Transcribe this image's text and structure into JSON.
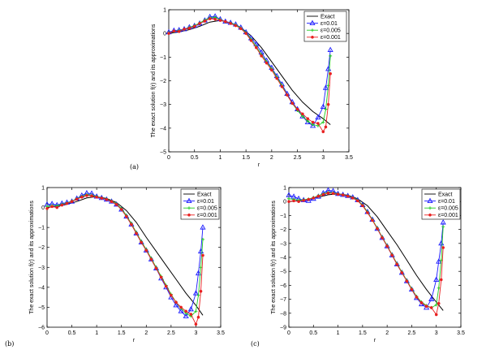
{
  "chart_data": [
    {
      "panel_label": "(a)",
      "type": "line",
      "xlabel": "r",
      "ylabel": "The exact solution f(r) and its approximations",
      "xlim": [
        0,
        3.5
      ],
      "ylim": [
        -5,
        1
      ],
      "xticks": [
        "0",
        "0.5",
        "1",
        "1.5",
        "2",
        "2.5",
        "3",
        "3.5"
      ],
      "yticks": [
        "1",
        "0",
        "−1",
        "−2",
        "−3",
        "−4",
        "−5"
      ],
      "legend": {
        "placement": "top-right",
        "entries": [
          "Exact",
          "ε=0.01",
          "ε=0.005",
          "ε=0.001"
        ]
      },
      "series": [
        {
          "name": "Exact",
          "color": "#000000",
          "marker": "none",
          "x": [
            0,
            0.2,
            0.4,
            0.6,
            0.8,
            1.0,
            1.2,
            1.4,
            1.6,
            1.8,
            2.0,
            2.2,
            2.4,
            2.6,
            2.8,
            3.0,
            3.14
          ],
          "y": [
            0.0,
            0.06,
            0.16,
            0.3,
            0.48,
            0.55,
            0.45,
            0.25,
            -0.1,
            -0.6,
            -1.2,
            -1.8,
            -2.4,
            -2.9,
            -3.3,
            -3.6,
            -3.85
          ]
        },
        {
          "name": "ε=0.01",
          "color": "#1a1aff",
          "marker": "triangle",
          "x": [
            0,
            0.1,
            0.2,
            0.3,
            0.4,
            0.5,
            0.6,
            0.7,
            0.8,
            0.9,
            1.0,
            1.1,
            1.2,
            1.3,
            1.4,
            1.5,
            1.6,
            1.7,
            1.8,
            1.9,
            2.0,
            2.1,
            2.2,
            2.3,
            2.4,
            2.5,
            2.6,
            2.7,
            2.8,
            2.9,
            3.0,
            3.05,
            3.1,
            3.14
          ],
          "y": [
            0.05,
            0.12,
            0.14,
            0.18,
            0.26,
            0.32,
            0.42,
            0.55,
            0.7,
            0.72,
            0.6,
            0.5,
            0.45,
            0.38,
            0.25,
            0.05,
            -0.2,
            -0.45,
            -0.8,
            -1.15,
            -1.45,
            -1.8,
            -2.15,
            -2.55,
            -2.9,
            -3.2,
            -3.5,
            -3.75,
            -3.9,
            -3.55,
            -3.1,
            -2.3,
            -1.5,
            -0.7
          ]
        },
        {
          "name": "ε=0.005",
          "color": "#22cc22",
          "marker": "plus",
          "x": [
            0,
            0.1,
            0.2,
            0.3,
            0.4,
            0.5,
            0.6,
            0.7,
            0.8,
            0.9,
            1.0,
            1.1,
            1.2,
            1.3,
            1.4,
            1.5,
            1.6,
            1.7,
            1.8,
            1.9,
            2.0,
            2.1,
            2.2,
            2.3,
            2.4,
            2.5,
            2.6,
            2.7,
            2.8,
            2.9,
            3.0,
            3.05,
            3.1,
            3.14
          ],
          "y": [
            0.02,
            0.08,
            0.12,
            0.17,
            0.25,
            0.33,
            0.44,
            0.56,
            0.66,
            0.68,
            0.58,
            0.49,
            0.44,
            0.36,
            0.23,
            0.03,
            -0.25,
            -0.55,
            -0.9,
            -1.2,
            -1.5,
            -1.85,
            -2.2,
            -2.6,
            -2.95,
            -3.25,
            -3.5,
            -3.7,
            -3.85,
            -3.9,
            -3.75,
            -3.2,
            -2.2,
            -0.95
          ]
        },
        {
          "name": "ε=0.001",
          "color": "#e82020",
          "marker": "dot",
          "x": [
            0,
            0.1,
            0.2,
            0.3,
            0.4,
            0.5,
            0.6,
            0.7,
            0.8,
            0.9,
            1.0,
            1.1,
            1.2,
            1.3,
            1.4,
            1.5,
            1.6,
            1.7,
            1.8,
            1.9,
            2.0,
            2.1,
            2.2,
            2.3,
            2.4,
            2.5,
            2.6,
            2.7,
            2.8,
            2.9,
            3.0,
            3.05,
            3.1,
            3.14
          ],
          "y": [
            0.0,
            0.1,
            0.08,
            0.18,
            0.22,
            0.3,
            0.42,
            0.52,
            0.62,
            0.6,
            0.55,
            0.5,
            0.42,
            0.33,
            0.2,
            0.0,
            -0.3,
            -0.6,
            -0.95,
            -1.25,
            -1.55,
            -1.9,
            -2.25,
            -2.6,
            -2.95,
            -3.2,
            -3.4,
            -3.6,
            -3.75,
            -3.8,
            -4.15,
            -3.95,
            -3.0,
            -1.7
          ]
        }
      ]
    },
    {
      "panel_label": "(b)",
      "type": "line",
      "xlabel": "r",
      "ylabel": "The exact solution f(r) and its approximations",
      "xlim": [
        0,
        3.5
      ],
      "ylim": [
        -6,
        1
      ],
      "xticks": [
        "0",
        "0.5",
        "1",
        "1.5",
        "2",
        "2.5",
        "3",
        "3.5"
      ],
      "yticks": [
        "1",
        "0",
        "−1",
        "−2",
        "−3",
        "−4",
        "−5",
        "−6"
      ],
      "legend": {
        "placement": "top-right",
        "entries": [
          "Exact",
          "ε=0.01",
          "ε=0.005",
          "ε=0.001"
        ]
      },
      "series": [
        {
          "name": "Exact",
          "color": "#000000",
          "marker": "none",
          "x": [
            0,
            0.2,
            0.4,
            0.6,
            0.8,
            1.0,
            1.2,
            1.4,
            1.6,
            1.8,
            2.0,
            2.2,
            2.4,
            2.6,
            2.8,
            3.0,
            3.14
          ],
          "y": [
            0.0,
            0.06,
            0.16,
            0.3,
            0.48,
            0.55,
            0.45,
            0.25,
            -0.15,
            -0.75,
            -1.5,
            -2.2,
            -2.9,
            -3.6,
            -4.3,
            -4.9,
            -5.4
          ]
        },
        {
          "name": "ε=0.01",
          "color": "#1a1aff",
          "marker": "triangle",
          "x": [
            0,
            0.1,
            0.2,
            0.3,
            0.4,
            0.5,
            0.6,
            0.7,
            0.8,
            0.9,
            1.0,
            1.1,
            1.2,
            1.3,
            1.4,
            1.5,
            1.6,
            1.7,
            1.8,
            1.9,
            2.0,
            2.1,
            2.2,
            2.3,
            2.4,
            2.5,
            2.6,
            2.7,
            2.8,
            2.9,
            3.0,
            3.05,
            3.1,
            3.14
          ],
          "y": [
            0.15,
            0.18,
            0.12,
            0.2,
            0.25,
            0.3,
            0.45,
            0.6,
            0.72,
            0.7,
            0.55,
            0.48,
            0.4,
            0.3,
            0.15,
            -0.1,
            -0.45,
            -0.85,
            -1.3,
            -1.75,
            -2.15,
            -2.6,
            -3.05,
            -3.55,
            -4.0,
            -4.5,
            -4.9,
            -5.2,
            -5.45,
            -5.1,
            -4.3,
            -3.3,
            -2.2,
            -1.0
          ]
        },
        {
          "name": "ε=0.005",
          "color": "#22cc22",
          "marker": "plus",
          "x": [
            0,
            0.1,
            0.2,
            0.3,
            0.4,
            0.5,
            0.6,
            0.7,
            0.8,
            0.9,
            1.0,
            1.1,
            1.2,
            1.3,
            1.4,
            1.5,
            1.6,
            1.7,
            1.8,
            1.9,
            2.0,
            2.1,
            2.2,
            2.3,
            2.4,
            2.5,
            2.6,
            2.7,
            2.8,
            2.9,
            3.0,
            3.05,
            3.1,
            3.14
          ],
          "y": [
            0.05,
            0.1,
            0.08,
            0.16,
            0.22,
            0.32,
            0.44,
            0.55,
            0.65,
            0.62,
            0.55,
            0.48,
            0.42,
            0.32,
            0.18,
            -0.05,
            -0.4,
            -0.8,
            -1.25,
            -1.7,
            -2.1,
            -2.55,
            -3.0,
            -3.45,
            -3.9,
            -4.35,
            -4.75,
            -5.05,
            -5.3,
            -5.45,
            -5.2,
            -4.4,
            -3.0,
            -1.6
          ]
        },
        {
          "name": "ε=0.001",
          "color": "#e82020",
          "marker": "dot",
          "x": [
            0,
            0.1,
            0.2,
            0.3,
            0.4,
            0.5,
            0.6,
            0.7,
            0.8,
            0.9,
            1.0,
            1.1,
            1.2,
            1.3,
            1.4,
            1.5,
            1.6,
            1.7,
            1.8,
            1.9,
            2.0,
            2.1,
            2.2,
            2.3,
            2.4,
            2.5,
            2.6,
            2.7,
            2.8,
            2.9,
            3.0,
            3.05,
            3.1,
            3.14
          ],
          "y": [
            -0.05,
            0.05,
            0.0,
            0.12,
            0.2,
            0.3,
            0.42,
            0.52,
            0.6,
            0.58,
            0.52,
            0.47,
            0.4,
            0.3,
            0.15,
            -0.1,
            -0.45,
            -0.85,
            -1.3,
            -1.75,
            -2.15,
            -2.6,
            -3.05,
            -3.5,
            -3.95,
            -4.4,
            -4.75,
            -5.0,
            -5.2,
            -5.35,
            -5.85,
            -5.5,
            -4.2,
            -2.4
          ]
        }
      ]
    },
    {
      "panel_label": "(c)",
      "type": "line",
      "xlabel": "r",
      "ylabel": "The exact solution f(r) and its approximations",
      "xlim": [
        0,
        3.5
      ],
      "ylim": [
        -9,
        1
      ],
      "xticks": [
        "0",
        "0.5",
        "1",
        "1.5",
        "2",
        "2.5",
        "3",
        "3.5"
      ],
      "yticks": [
        "1",
        "0",
        "−1",
        "−2",
        "−3",
        "−4",
        "−5",
        "−6",
        "−7",
        "−8",
        "−9"
      ],
      "legend": {
        "placement": "top-right",
        "entries": [
          "Exact",
          "ε=0.01",
          "ε=0.005",
          "ε=0.001"
        ]
      },
      "series": [
        {
          "name": "Exact",
          "color": "#000000",
          "marker": "none",
          "x": [
            0,
            0.2,
            0.4,
            0.6,
            0.8,
            1.0,
            1.2,
            1.4,
            1.6,
            1.8,
            2.0,
            2.2,
            2.4,
            2.6,
            2.8,
            3.0,
            3.14
          ],
          "y": [
            0.0,
            0.06,
            0.16,
            0.3,
            0.48,
            0.55,
            0.45,
            0.2,
            -0.3,
            -1.1,
            -2.1,
            -3.1,
            -4.2,
            -5.3,
            -6.3,
            -7.2,
            -7.8
          ]
        },
        {
          "name": "ε=0.01",
          "color": "#1a1aff",
          "marker": "triangle",
          "x": [
            0,
            0.1,
            0.2,
            0.3,
            0.4,
            0.5,
            0.6,
            0.7,
            0.8,
            0.9,
            1.0,
            1.1,
            1.2,
            1.3,
            1.4,
            1.5,
            1.6,
            1.7,
            1.8,
            1.9,
            2.0,
            2.1,
            2.2,
            2.3,
            2.4,
            2.5,
            2.6,
            2.7,
            2.8,
            2.9,
            3.0,
            3.05,
            3.1,
            3.14
          ],
          "y": [
            0.45,
            0.35,
            0.2,
            0.1,
            0.05,
            0.2,
            0.35,
            0.6,
            0.8,
            0.75,
            0.55,
            0.48,
            0.4,
            0.3,
            0.1,
            -0.25,
            -0.75,
            -1.3,
            -1.95,
            -2.6,
            -3.2,
            -3.85,
            -4.5,
            -5.1,
            -5.7,
            -6.3,
            -6.9,
            -7.35,
            -7.6,
            -7.0,
            -5.6,
            -4.3,
            -3.0,
            -1.5
          ]
        },
        {
          "name": "ε=0.005",
          "color": "#22cc22",
          "marker": "plus",
          "x": [
            0,
            0.1,
            0.2,
            0.3,
            0.4,
            0.5,
            0.6,
            0.7,
            0.8,
            0.9,
            1.0,
            1.1,
            1.2,
            1.3,
            1.4,
            1.5,
            1.6,
            1.7,
            1.8,
            1.9,
            2.0,
            2.1,
            2.2,
            2.3,
            2.4,
            2.5,
            2.6,
            2.7,
            2.8,
            2.9,
            3.0,
            3.05,
            3.1,
            3.14
          ],
          "y": [
            0.2,
            0.15,
            0.1,
            0.12,
            0.18,
            0.28,
            0.42,
            0.55,
            0.65,
            0.62,
            0.55,
            0.48,
            0.4,
            0.28,
            0.1,
            -0.25,
            -0.75,
            -1.3,
            -1.9,
            -2.55,
            -3.15,
            -3.8,
            -4.45,
            -5.05,
            -5.65,
            -6.25,
            -6.8,
            -7.2,
            -7.45,
            -7.6,
            -7.4,
            -6.2,
            -4.2,
            -1.8
          ]
        },
        {
          "name": "ε=0.001",
          "color": "#e82020",
          "marker": "dot",
          "x": [
            0,
            0.1,
            0.2,
            0.3,
            0.4,
            0.5,
            0.6,
            0.7,
            0.8,
            0.9,
            1.0,
            1.1,
            1.2,
            1.3,
            1.4,
            1.5,
            1.6,
            1.7,
            1.8,
            1.9,
            2.0,
            2.1,
            2.2,
            2.3,
            2.4,
            2.5,
            2.6,
            2.7,
            2.8,
            2.9,
            3.0,
            3.05,
            3.1,
            3.14
          ],
          "y": [
            0.0,
            0.05,
            0.0,
            0.08,
            0.15,
            0.25,
            0.38,
            0.5,
            0.6,
            0.58,
            0.52,
            0.47,
            0.38,
            0.25,
            0.05,
            -0.3,
            -0.8,
            -1.35,
            -1.95,
            -2.6,
            -3.2,
            -3.85,
            -4.5,
            -5.1,
            -5.7,
            -6.3,
            -6.85,
            -7.25,
            -7.5,
            -7.6,
            -8.1,
            -7.3,
            -5.6,
            -3.3
          ]
        }
      ]
    }
  ]
}
